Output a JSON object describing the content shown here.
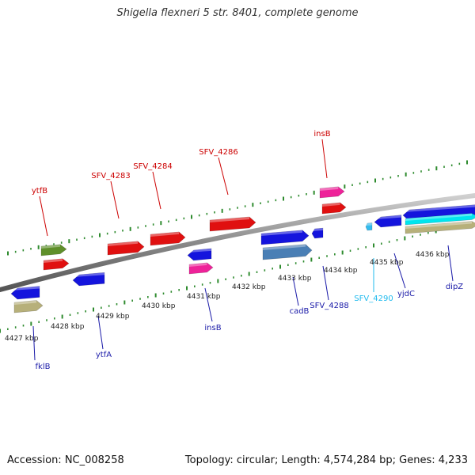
{
  "title": "Shigella flexneri 5 str. 8401, complete genome",
  "footer": {
    "accession": "Accession: NC_008258",
    "stats": "Topology: circular; Length: 4,574,284 bp; Genes: 4,233"
  },
  "colors": {
    "backbone": "#8a8a8a",
    "tick": "#2e8b2e",
    "red": "#e01010",
    "blue": "#1414dd",
    "pink": "#ee2299",
    "olive": "#5f8f2a",
    "steel": "#4a7fb5",
    "khaki": "#b7b07a",
    "cyan": "#00e5ee",
    "light_blue": "#33bbee",
    "label_red": "#cc0000",
    "label_blue": "#1a1aa8",
    "label_cyan": "#22bbee"
  },
  "axis": {
    "unit": "kbp",
    "tick_labels": [
      "4427 kbp",
      "4428 kbp",
      "4429 kbp",
      "4430 kbp",
      "4431 kbp",
      "4432 kbp",
      "4433 kbp",
      "4434 kbp",
      "4435 kbp",
      "4436 kbp"
    ]
  },
  "genes": [
    {
      "name": "ytfB",
      "strand": "forward",
      "color": "label_red"
    },
    {
      "name": "SFV_4283",
      "strand": "forward",
      "color": "label_red"
    },
    {
      "name": "SFV_4284",
      "strand": "forward",
      "color": "label_red"
    },
    {
      "name": "SFV_4286",
      "strand": "forward",
      "color": "label_red"
    },
    {
      "name": "insB",
      "strand": "forward",
      "color": "label_red"
    },
    {
      "name": "fklB",
      "strand": "reverse",
      "color": "label_blue"
    },
    {
      "name": "ytfA",
      "strand": "reverse",
      "color": "label_blue"
    },
    {
      "name": "insB",
      "strand": "reverse",
      "color": "label_blue"
    },
    {
      "name": "cadB",
      "strand": "reverse",
      "color": "label_blue"
    },
    {
      "name": "SFV_4288",
      "strand": "reverse",
      "color": "label_blue"
    },
    {
      "name": "SFV_4290",
      "strand": "reverse",
      "color": "label_cyan"
    },
    {
      "name": "yjdC",
      "strand": "reverse",
      "color": "label_blue"
    },
    {
      "name": "dipZ",
      "strand": "reverse",
      "color": "label_blue"
    }
  ]
}
